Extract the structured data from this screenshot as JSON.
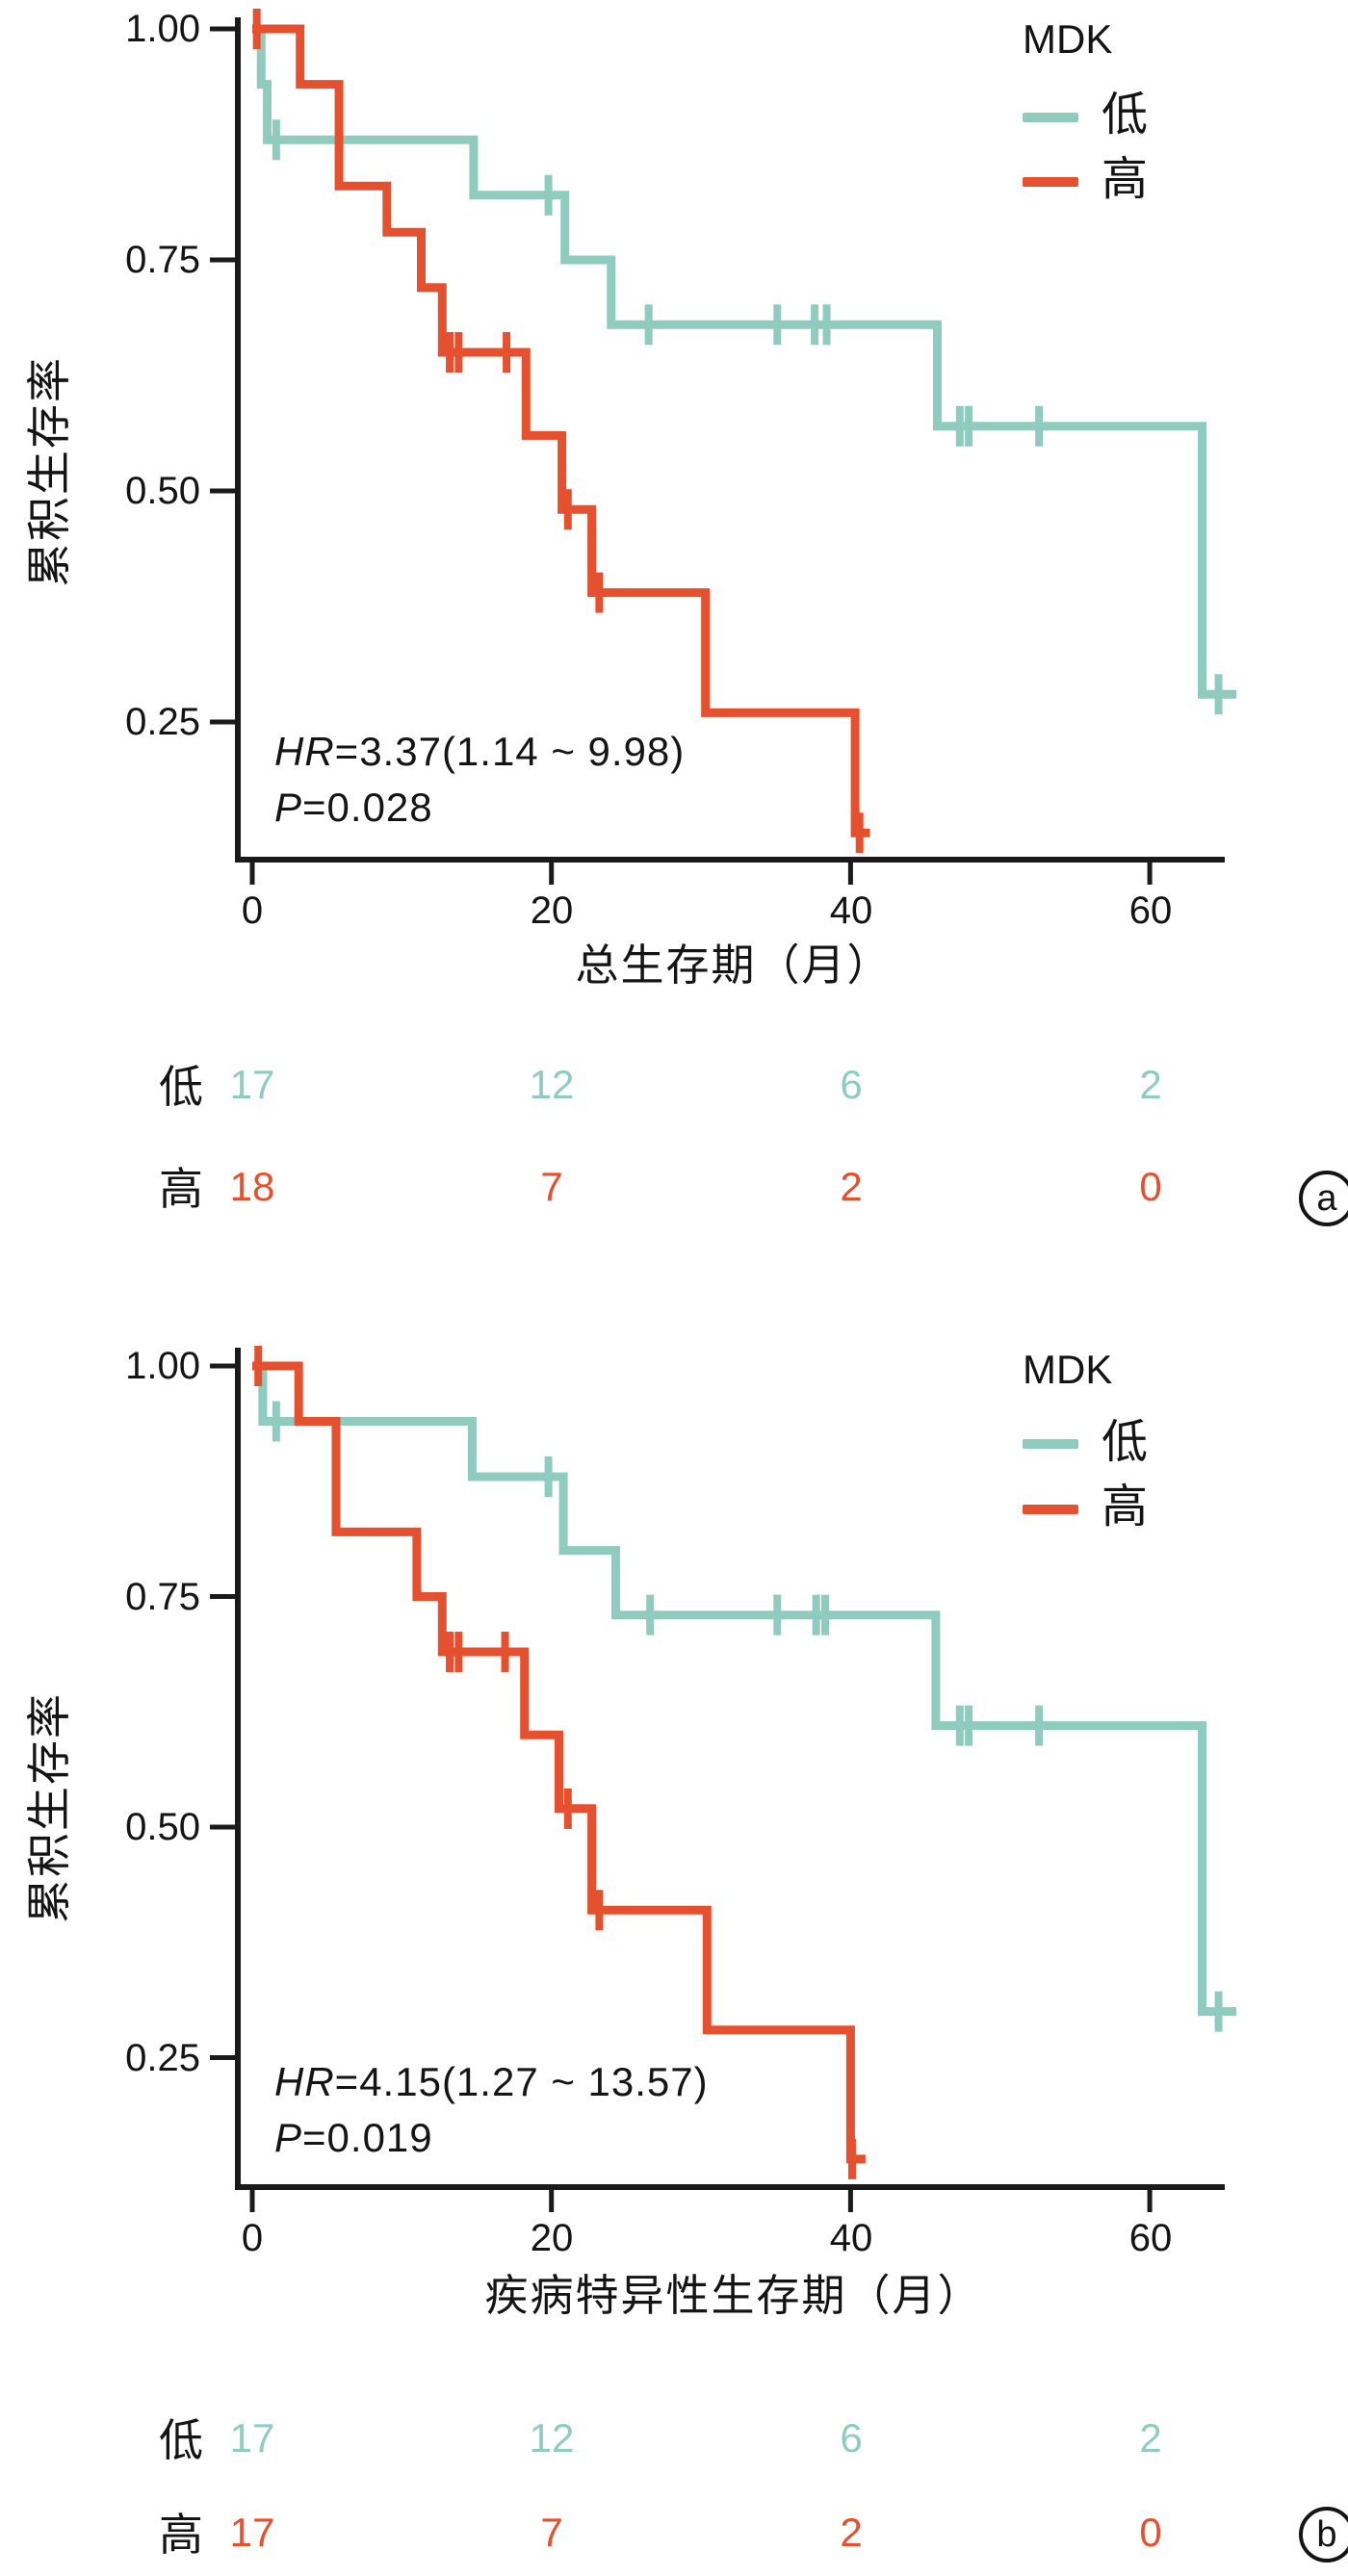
{
  "figure": {
    "background": "#ffffff",
    "colors": {
      "low": "#8fccbf",
      "high": "#e5502e",
      "text": "#141414",
      "axis": "#1a1a1a"
    }
  },
  "chart_data": [
    {
      "type": "line",
      "subtype": "kaplan-meier-step",
      "panel_letter": "a",
      "xlabel": "总生存期（月）",
      "ylabel": "累积生存率",
      "xlim": [
        0,
        66.5
      ],
      "xticks": [
        0,
        20,
        40,
        60
      ],
      "yticks": [
        1.0,
        0.75,
        0.5,
        0.25
      ],
      "xtick_labels": [
        "0",
        "20",
        "40",
        "60"
      ],
      "ytick_labels": [
        "1.00",
        "0.75",
        "0.50",
        "0.25"
      ],
      "grid": "off",
      "legend": {
        "title": "MDK",
        "position": "top-right",
        "entries": [
          "低",
          "高"
        ]
      },
      "annotation": {
        "hr_label": "HR",
        "hr_value": "=3.37(1.14 ~ 9.98)",
        "p_label": "P",
        "p_value": "=0.028"
      },
      "series": [
        {
          "name": "低",
          "color_key": "low",
          "color": "#8fccbf",
          "steps": [
            [
              0,
              1.0
            ],
            [
              0.6,
              1.0
            ],
            [
              0.6,
              0.94
            ],
            [
              1.0,
              0.94
            ],
            [
              1.0,
              0.88
            ],
            [
              14.8,
              0.88
            ],
            [
              14.8,
              0.82
            ],
            [
              20.9,
              0.82
            ],
            [
              20.9,
              0.75
            ],
            [
              24.0,
              0.75
            ],
            [
              24.0,
              0.68
            ],
            [
              45.8,
              0.68
            ],
            [
              45.8,
              0.57
            ],
            [
              63.5,
              0.57
            ],
            [
              63.5,
              0.28
            ],
            [
              65.8,
              0.28
            ]
          ],
          "censors": [
            [
              1.6,
              0.88
            ],
            [
              19.8,
              0.82
            ],
            [
              26.5,
              0.68
            ],
            [
              35.1,
              0.68
            ],
            [
              37.6,
              0.68
            ],
            [
              38.4,
              0.68
            ],
            [
              47.3,
              0.57
            ],
            [
              47.9,
              0.57
            ],
            [
              52.6,
              0.57
            ],
            [
              64.6,
              0.28
            ]
          ]
        },
        {
          "name": "高",
          "color_key": "high",
          "color": "#e5502e",
          "steps": [
            [
              0,
              1.0
            ],
            [
              3.2,
              1.0
            ],
            [
              3.2,
              0.94
            ],
            [
              5.8,
              0.94
            ],
            [
              5.8,
              0.83
            ],
            [
              9.0,
              0.83
            ],
            [
              9.0,
              0.78
            ],
            [
              11.3,
              0.78
            ],
            [
              11.3,
              0.72
            ],
            [
              12.7,
              0.72
            ],
            [
              12.7,
              0.65
            ],
            [
              18.3,
              0.65
            ],
            [
              18.3,
              0.56
            ],
            [
              20.7,
              0.56
            ],
            [
              20.7,
              0.48
            ],
            [
              22.7,
              0.48
            ],
            [
              22.7,
              0.39
            ],
            [
              30.3,
              0.39
            ],
            [
              30.3,
              0.26
            ],
            [
              40.3,
              0.26
            ],
            [
              40.3,
              0.13
            ],
            [
              41.3,
              0.13
            ]
          ],
          "censors": [
            [
              0.3,
              1.0
            ],
            [
              13.2,
              0.65
            ],
            [
              13.8,
              0.65
            ],
            [
              17.0,
              0.65
            ],
            [
              21.1,
              0.48
            ],
            [
              23.2,
              0.39
            ],
            [
              40.6,
              0.13
            ]
          ]
        }
      ],
      "risk_table": {
        "time_points": [
          0,
          20,
          40,
          60
        ],
        "rows": [
          {
            "label": "低",
            "color_key": "low",
            "counts": [
              "17",
              "12",
              "6",
              "2"
            ]
          },
          {
            "label": "高",
            "color_key": "high",
            "counts": [
              "18",
              "7",
              "2",
              "0"
            ]
          }
        ]
      }
    },
    {
      "type": "line",
      "subtype": "kaplan-meier-step",
      "panel_letter": "b",
      "xlabel": "疾病特异性生存期（月）",
      "ylabel": "累积生存率",
      "xlim": [
        0,
        66.5
      ],
      "xticks": [
        0,
        20,
        40,
        60
      ],
      "yticks": [
        1.0,
        0.75,
        0.5,
        0.25
      ],
      "xtick_labels": [
        "0",
        "20",
        "40",
        "60"
      ],
      "ytick_labels": [
        "1.00",
        "0.75",
        "0.50",
        "0.25"
      ],
      "grid": "off",
      "legend": {
        "title": "MDK",
        "position": "top-right",
        "entries": [
          "低",
          "高"
        ]
      },
      "annotation": {
        "hr_label": "HR",
        "hr_value": "=4.15(1.27 ~ 13.57)",
        "p_label": "P",
        "p_value": "=0.019"
      },
      "series": [
        {
          "name": "低",
          "color_key": "low",
          "color": "#8fccbf",
          "steps": [
            [
              0,
              1.0
            ],
            [
              0.7,
              1.0
            ],
            [
              0.7,
              0.94
            ],
            [
              14.7,
              0.94
            ],
            [
              14.7,
              0.88
            ],
            [
              20.8,
              0.88
            ],
            [
              20.8,
              0.8
            ],
            [
              24.3,
              0.8
            ],
            [
              24.3,
              0.73
            ],
            [
              45.7,
              0.73
            ],
            [
              45.7,
              0.61
            ],
            [
              63.5,
              0.61
            ],
            [
              63.5,
              0.3
            ],
            [
              65.8,
              0.3
            ]
          ],
          "censors": [
            [
              1.6,
              0.94
            ],
            [
              19.8,
              0.88
            ],
            [
              26.6,
              0.73
            ],
            [
              35.1,
              0.73
            ],
            [
              37.7,
              0.73
            ],
            [
              38.3,
              0.73
            ],
            [
              47.3,
              0.61
            ],
            [
              47.9,
              0.61
            ],
            [
              52.6,
              0.61
            ],
            [
              64.6,
              0.3
            ]
          ]
        },
        {
          "name": "高",
          "color_key": "high",
          "color": "#e5502e",
          "steps": [
            [
              0,
              1.0
            ],
            [
              3.1,
              1.0
            ],
            [
              3.1,
              0.94
            ],
            [
              5.6,
              0.94
            ],
            [
              5.6,
              0.82
            ],
            [
              11.0,
              0.82
            ],
            [
              11.0,
              0.75
            ],
            [
              12.7,
              0.75
            ],
            [
              12.7,
              0.69
            ],
            [
              18.2,
              0.69
            ],
            [
              18.2,
              0.6
            ],
            [
              20.5,
              0.6
            ],
            [
              20.5,
              0.52
            ],
            [
              22.7,
              0.52
            ],
            [
              22.7,
              0.41
            ],
            [
              30.4,
              0.41
            ],
            [
              30.4,
              0.28
            ],
            [
              40.0,
              0.28
            ],
            [
              40.0,
              0.14
            ],
            [
              41.0,
              0.14
            ]
          ],
          "censors": [
            [
              0.4,
              1.0
            ],
            [
              13.2,
              0.69
            ],
            [
              13.8,
              0.69
            ],
            [
              16.9,
              0.69
            ],
            [
              21.1,
              0.52
            ],
            [
              23.2,
              0.41
            ],
            [
              40.1,
              0.14
            ]
          ]
        }
      ],
      "risk_table": {
        "time_points": [
          0,
          20,
          40,
          60
        ],
        "rows": [
          {
            "label": "低",
            "color_key": "low",
            "counts": [
              "17",
              "12",
              "6",
              "2"
            ]
          },
          {
            "label": "高",
            "color_key": "high",
            "counts": [
              "17",
              "7",
              "2",
              "0"
            ]
          }
        ]
      }
    }
  ]
}
